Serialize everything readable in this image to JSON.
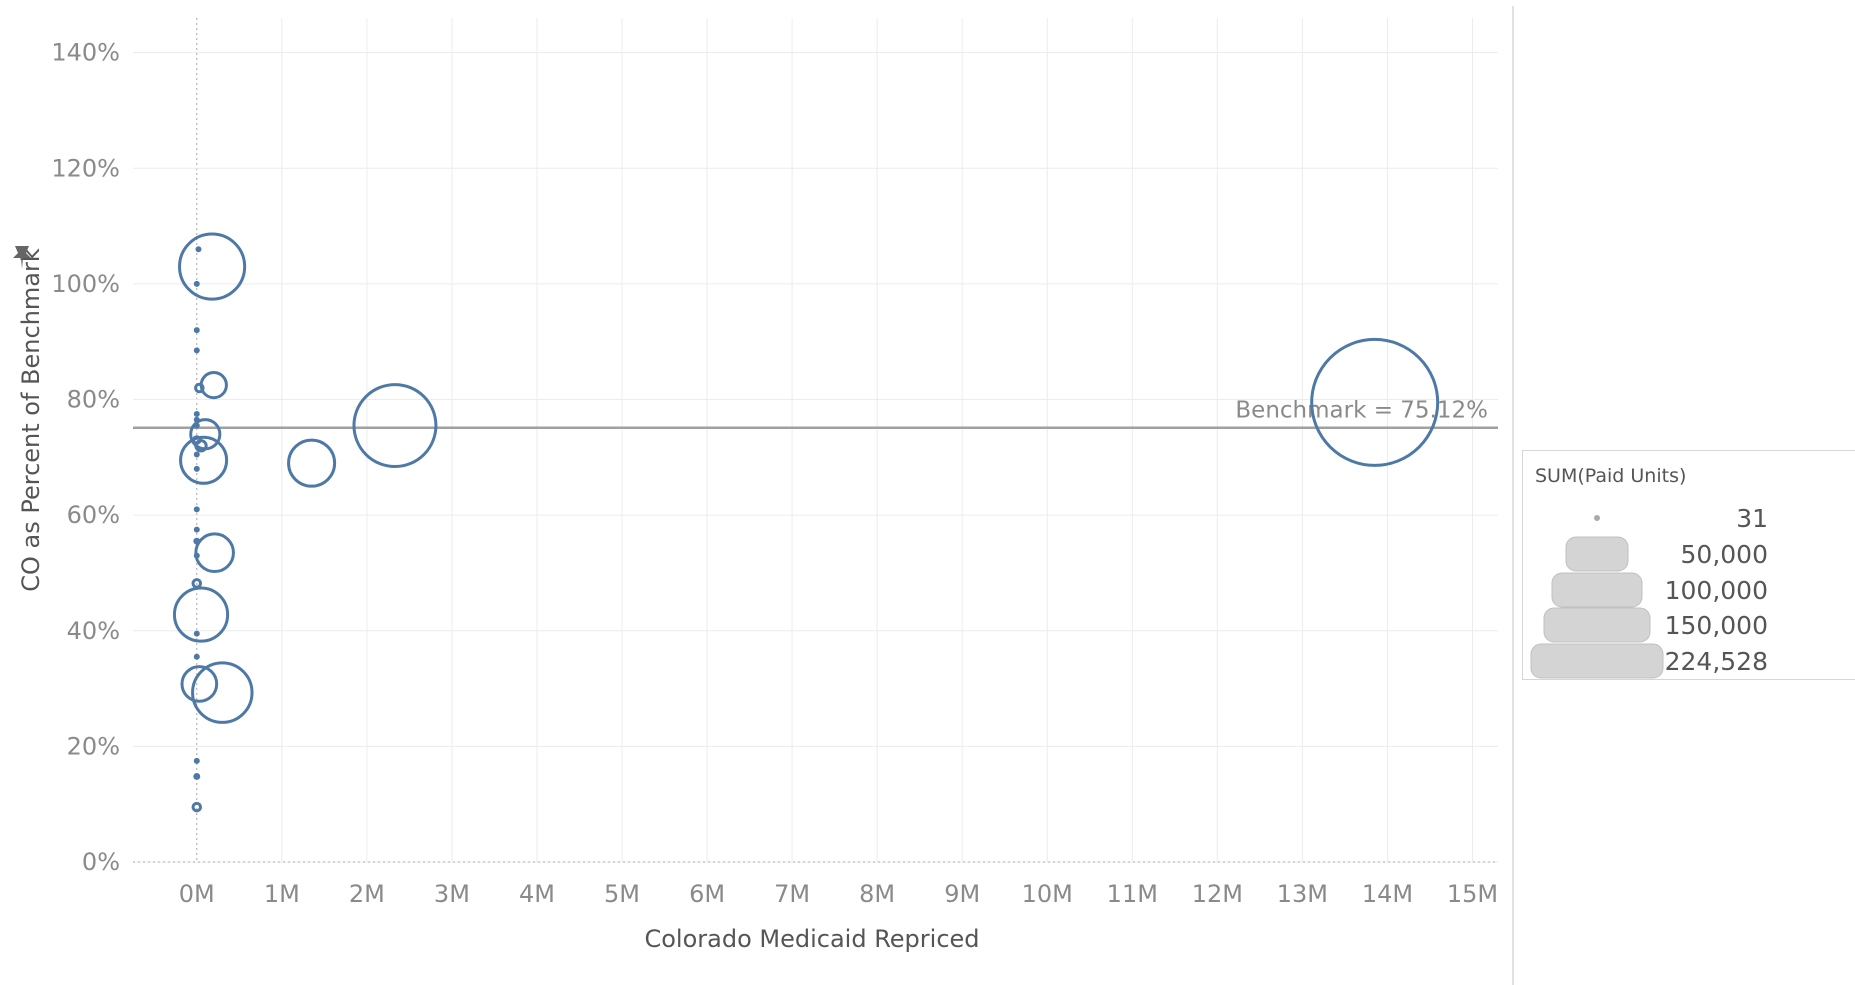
{
  "chart_data": {
    "type": "scatter",
    "xlabel": "Colorado Medicaid Repriced",
    "ylabel": "CO as Percent of Benchmark",
    "xlim": [
      -0.75,
      15.3
    ],
    "ylim": [
      0,
      1.46
    ],
    "x_ticks": [
      0,
      1,
      2,
      3,
      4,
      5,
      6,
      7,
      8,
      9,
      10,
      11,
      12,
      13,
      14,
      15
    ],
    "x_tick_labels": [
      "0M",
      "1M",
      "2M",
      "3M",
      "4M",
      "5M",
      "6M",
      "7M",
      "8M",
      "9M",
      "10M",
      "11M",
      "12M",
      "13M",
      "14M",
      "15M"
    ],
    "y_ticks": [
      0,
      0.2,
      0.4,
      0.6,
      0.8,
      1.0,
      1.2,
      1.4
    ],
    "y_tick_labels": [
      "0%",
      "20%",
      "40%",
      "60%",
      "80%",
      "100%",
      "120%",
      "140%"
    ],
    "grid": true,
    "reference_line": {
      "value": 0.7512,
      "label": "Benchmark = 75.12%"
    },
    "marker_color": "#4e79a7",
    "size_by": "SUM(Paid Units)",
    "points": [
      {
        "x": 0.02,
        "y": 1.06,
        "units": 31
      },
      {
        "x": 0.18,
        "y": 1.03,
        "units": 60000
      },
      {
        "x": 0.0,
        "y": 1.0,
        "units": 31
      },
      {
        "x": 0.0,
        "y": 0.92,
        "units": 31
      },
      {
        "x": 0.0,
        "y": 0.885,
        "units": 31
      },
      {
        "x": 0.03,
        "y": 0.82,
        "units": 800
      },
      {
        "x": 0.2,
        "y": 0.825,
        "units": 9000
      },
      {
        "x": 0.0,
        "y": 0.775,
        "units": 300
      },
      {
        "x": 0.0,
        "y": 0.765,
        "units": 300
      },
      {
        "x": 0.0,
        "y": 0.755,
        "units": 300
      },
      {
        "x": 2.33,
        "y": 0.755,
        "units": 95000
      },
      {
        "x": 0.1,
        "y": 0.74,
        "units": 12000
      },
      {
        "x": 0.0,
        "y": 0.73,
        "units": 600
      },
      {
        "x": 0.05,
        "y": 0.72,
        "units": 1500
      },
      {
        "x": 0.0,
        "y": 0.705,
        "units": 300
      },
      {
        "x": 0.08,
        "y": 0.695,
        "units": 30000
      },
      {
        "x": 1.35,
        "y": 0.69,
        "units": 30000
      },
      {
        "x": 0.0,
        "y": 0.68,
        "units": 31
      },
      {
        "x": 0.0,
        "y": 0.61,
        "units": 31
      },
      {
        "x": 0.0,
        "y": 0.575,
        "units": 31
      },
      {
        "x": 0.0,
        "y": 0.555,
        "units": 500
      },
      {
        "x": 0.21,
        "y": 0.535,
        "units": 20000
      },
      {
        "x": 0.0,
        "y": 0.53,
        "units": 31
      },
      {
        "x": 0.0,
        "y": 0.482,
        "units": 800
      },
      {
        "x": 0.05,
        "y": 0.428,
        "units": 40000
      },
      {
        "x": 0.0,
        "y": 0.395,
        "units": 31
      },
      {
        "x": 0.0,
        "y": 0.355,
        "units": 300
      },
      {
        "x": 0.03,
        "y": 0.308,
        "units": 17000
      },
      {
        "x": 0.3,
        "y": 0.293,
        "units": 50000
      },
      {
        "x": 0.0,
        "y": 0.175,
        "units": 31
      },
      {
        "x": 0.0,
        "y": 0.148,
        "units": 500
      },
      {
        "x": 0.0,
        "y": 0.095,
        "units": 800
      },
      {
        "x": 13.85,
        "y": 0.795,
        "units": 224528
      }
    ]
  },
  "legend": {
    "title": "SUM(Paid Units)",
    "items": [
      {
        "label": "31",
        "value": 31
      },
      {
        "label": "50,000",
        "value": 50000
      },
      {
        "label": "100,000",
        "value": 100000
      },
      {
        "label": "150,000",
        "value": 150000
      },
      {
        "label": "224,528",
        "value": 224528
      }
    ],
    "swatch_color": "#d4d4d4"
  }
}
